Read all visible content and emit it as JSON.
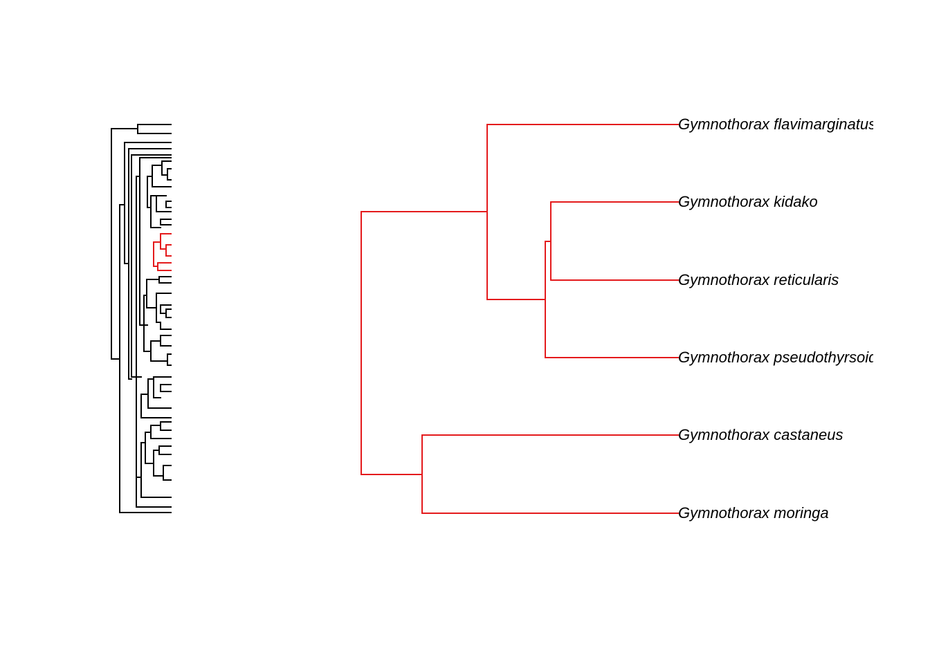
{
  "figure": {
    "overview_tree": {
      "branch_color": "#000000",
      "highlight_color": "#e41a1c"
    },
    "zoom_tree": {
      "branch_color": "#e41a1c",
      "label_color": "#000000",
      "tips": [
        "Gymnothorax flavimarginatus",
        "Gymnothorax kidako",
        "Gymnothorax reticularis",
        "Gymnothorax pseudothyrsoideus",
        "Gymnothorax castaneus",
        "Gymnothorax moringa"
      ]
    }
  }
}
